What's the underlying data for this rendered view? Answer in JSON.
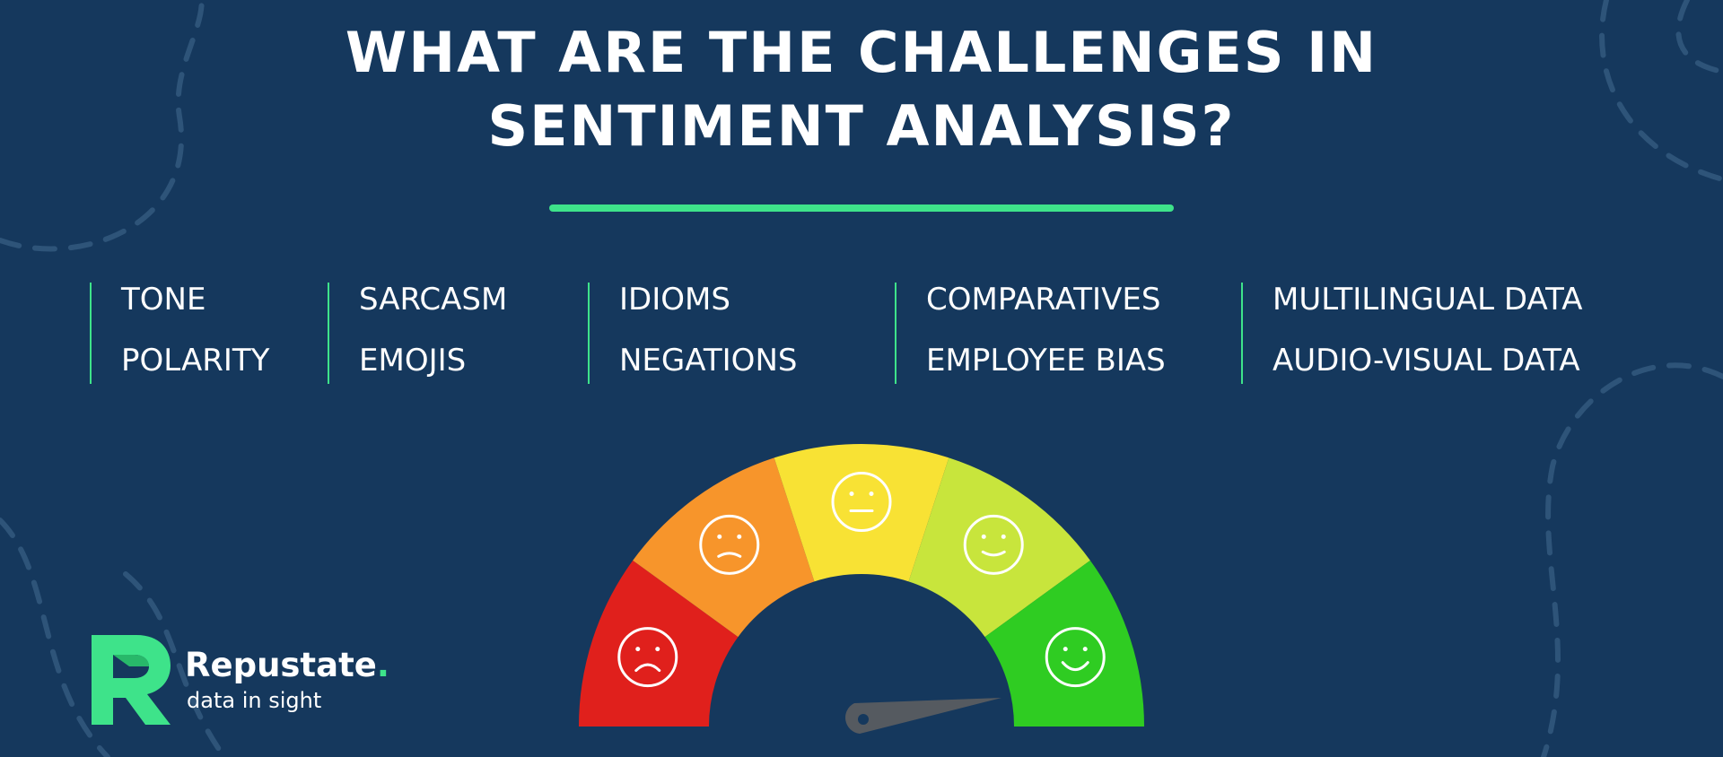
{
  "title": {
    "line1": "WHAT ARE THE CHALLENGES IN",
    "line2": "SENTIMENT ANALYSIS?"
  },
  "columns": [
    {
      "items": [
        "TONE",
        "POLARITY"
      ]
    },
    {
      "items": [
        "SARCASM",
        "EMOJIS"
      ]
    },
    {
      "items": [
        "IDIOMS",
        "NEGATIONS"
      ]
    },
    {
      "items": [
        "COMPARATIVES",
        "EMPLOYEE BIAS"
      ]
    },
    {
      "items": [
        "MULTILINGUAL DATA",
        "AUDIO-VISUAL DATA"
      ]
    }
  ],
  "gauge": {
    "segments": [
      {
        "color": "#e0201c",
        "face": "sad-face-icon"
      },
      {
        "color": "#f7952b",
        "face": "frown-face-icon"
      },
      {
        "color": "#f8e234",
        "face": "neutral-face-icon"
      },
      {
        "color": "#c8e53c",
        "face": "slight-smile-face-icon"
      },
      {
        "color": "#2fcc22",
        "face": "happy-face-icon"
      }
    ],
    "needle_color": "#555a60"
  },
  "logo": {
    "brand": "Repustate",
    "brand_dot": ".",
    "tagline": "data in sight"
  },
  "colors": {
    "background": "#15385d",
    "accent": "#3ee38a",
    "text": "#ffffff"
  }
}
